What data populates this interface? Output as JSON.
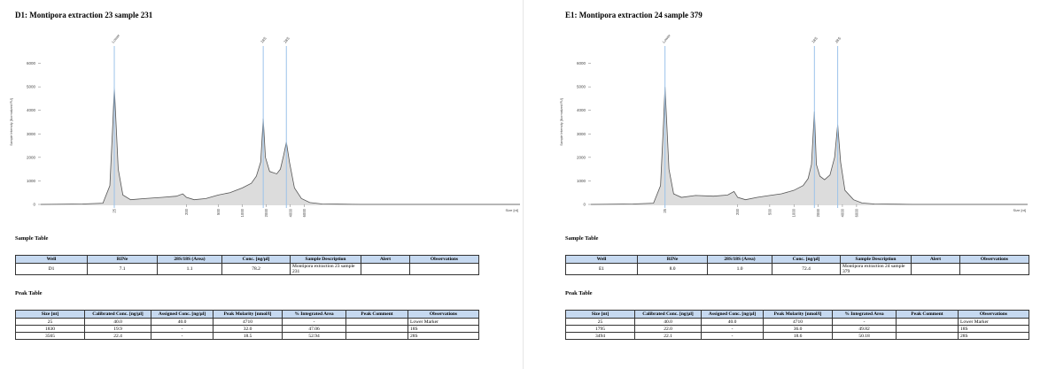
{
  "panels": [
    {
      "title": "D1: Montipora extraction 23 sample 231",
      "chart": {
        "type": "area",
        "ylabel": "Sample Intensity [Normalized FU]",
        "xlabel": "Size [nt]",
        "xlog": true,
        "xlim": [
          3,
          3000000
        ],
        "ylim": [
          0,
          7000
        ],
        "xticks": [
          25,
          200,
          500,
          1000,
          2000,
          4000,
          6000
        ],
        "yticks": [
          0,
          1000,
          2000,
          3000,
          4000,
          5000,
          6000
        ],
        "x": [
          3,
          10,
          18,
          22,
          24,
          25,
          26,
          28,
          32,
          40,
          60,
          100,
          150,
          180,
          200,
          250,
          350,
          500,
          700,
          1000,
          1300,
          1500,
          1700,
          1830,
          1950,
          2200,
          2700,
          3000,
          3300,
          3565,
          3900,
          4500,
          5500,
          7000,
          10000,
          30000,
          3000000
        ],
        "series": [
          {
            "color": "#555555",
            "values": [
              0,
              20,
              50,
              800,
              3500,
              5000,
              3800,
              1500,
              400,
              200,
              250,
              300,
              350,
              450,
              300,
              200,
              250,
              400,
              500,
              700,
              900,
              1200,
              1800,
              3650,
              2000,
              1400,
              1300,
              1500,
              2100,
              2650,
              1800,
              700,
              250,
              80,
              20,
              0,
              0
            ]
          }
        ],
        "markers": [
          {
            "label": "Lower",
            "x": 25
          },
          {
            "label": "18S",
            "x": 1830
          },
          {
            "label": "28S",
            "x": 3565
          }
        ]
      },
      "sample_table": {
        "title": "Sample Table",
        "headers": [
          "Well",
          "RINe",
          "28S/18S (Area)",
          "Conc. [ng/µl]",
          "Sample Description",
          "Alert",
          "Observations"
        ],
        "rows": [
          [
            "D1",
            "7.1",
            "1.1",
            "78.2",
            "Montipora extraction 23 sample 231",
            null,
            null
          ]
        ]
      },
      "peak_table": {
        "title": "Peak Table",
        "headers": [
          "Size [nt]",
          "Calibrated Conc. [ng/µl]",
          "Assigned Conc. [ng/µl]",
          "Peak Molarity [nmol/l]",
          "% Integrated Area",
          "Peak Comment",
          "Observations"
        ],
        "rows": [
          [
            "25",
            "40.0",
            "40.0",
            "4710",
            "-",
            null,
            "Lower Marker"
          ],
          [
            "1830",
            "19.9",
            "-",
            "32.0",
            "47.06",
            null,
            "18S"
          ],
          [
            "3565",
            "22.4",
            "-",
            "18.5",
            "52.94",
            null,
            "28S"
          ]
        ]
      }
    },
    {
      "title": "E1: Montipora extraction 24 sample 379",
      "chart": {
        "type": "area",
        "ylabel": "Sample Intensity [Normalized FU]",
        "xlabel": "Size [nt]",
        "xlog": true,
        "xlim": [
          3,
          800000
        ],
        "ylim": [
          0,
          7000
        ],
        "xticks": [
          25,
          200,
          500,
          1000,
          2000,
          4000,
          6000
        ],
        "yticks": [
          0,
          1000,
          2000,
          3000,
          4000,
          5000,
          6000
        ],
        "x": [
          3,
          10,
          18,
          22,
          24,
          25,
          26,
          28,
          32,
          40,
          60,
          100,
          150,
          180,
          200,
          250,
          350,
          500,
          700,
          1000,
          1300,
          1500,
          1650,
          1795,
          1900,
          2100,
          2400,
          2800,
          3200,
          3494,
          3800,
          4300,
          5500,
          7000,
          10000,
          30000,
          800000
        ],
        "series": [
          {
            "color": "#555555",
            "values": [
              0,
              20,
              50,
              800,
              3500,
              5000,
              3800,
              1500,
              450,
              300,
              380,
              350,
              400,
              550,
              300,
              200,
              300,
              380,
              450,
              600,
              800,
              1100,
              1700,
              3950,
              1700,
              1200,
              1050,
              1250,
              2000,
              3400,
              1800,
              600,
              200,
              60,
              20,
              0,
              0
            ]
          }
        ],
        "markers": [
          {
            "label": "Lower",
            "x": 25
          },
          {
            "label": "18S",
            "x": 1795
          },
          {
            "label": "28S",
            "x": 3494
          }
        ]
      },
      "sample_table": {
        "title": "Sample Table",
        "headers": [
          "Well",
          "RINe",
          "28S/18S (Area)",
          "Conc. [ng/µl]",
          "Sample Description",
          "Alert",
          "Observations"
        ],
        "rows": [
          [
            "E1",
            "8.0",
            "1.0",
            "72.4",
            "Montipora extraction 24 sample 379",
            null,
            null
          ]
        ]
      },
      "peak_table": {
        "title": "Peak Table",
        "headers": [
          "Size [nt]",
          "Calibrated Conc. [ng/µl]",
          "Assigned Conc. [ng/µl]",
          "Peak Molarity [nmol/l]",
          "% Integrated Area",
          "Peak Comment",
          "Observations"
        ],
        "rows": [
          [
            "25",
            "40.0",
            "40.0",
            "4710",
            "-",
            null,
            "Lower Marker"
          ],
          [
            "1795",
            "22.0",
            "-",
            "36.0",
            "49.82",
            null,
            "18S"
          ],
          [
            "3494",
            "22.1",
            "-",
            "18.6",
            "50.18",
            null,
            "28S"
          ]
        ]
      }
    }
  ]
}
